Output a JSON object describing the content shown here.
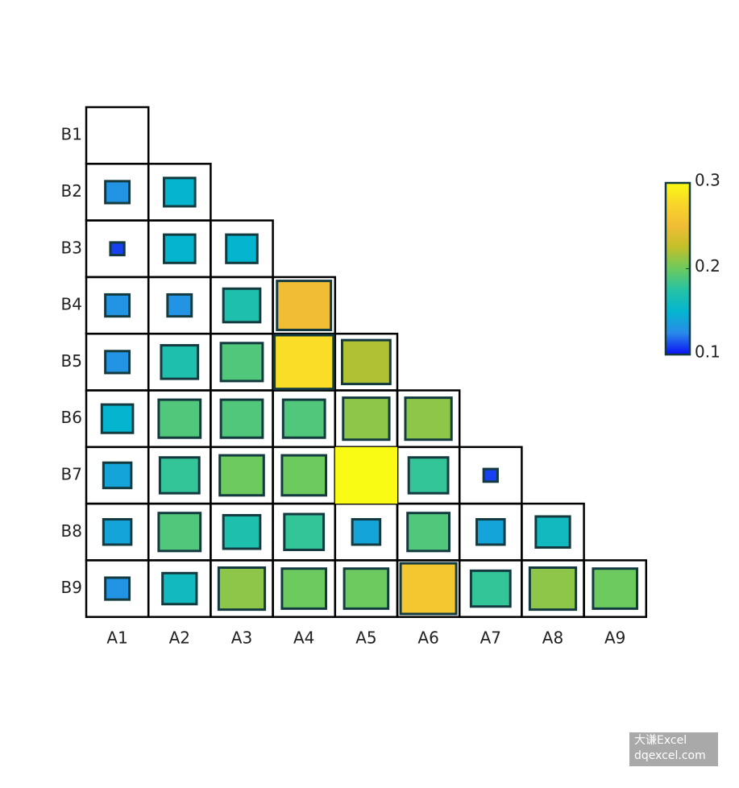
{
  "chart_data": {
    "type": "heatmap",
    "x": [
      "A1",
      "A2",
      "A3",
      "A4",
      "A5",
      "A6",
      "A7",
      "A8",
      "A9"
    ],
    "y": [
      "B1",
      "B2",
      "B3",
      "B4",
      "B5",
      "B6",
      "B7",
      "B8",
      "B9"
    ],
    "values": [
      [
        null,
        null,
        null,
        null,
        null,
        null,
        null,
        null,
        null
      ],
      [
        0.13,
        0.15,
        null,
        null,
        null,
        null,
        null,
        null,
        null
      ],
      [
        0.11,
        0.15,
        0.15,
        null,
        null,
        null,
        null,
        null,
        null
      ],
      [
        0.13,
        0.13,
        0.17,
        0.25,
        null,
        null,
        null,
        null,
        null
      ],
      [
        0.13,
        0.17,
        0.19,
        0.28,
        0.22,
        null,
        null,
        null,
        null
      ],
      [
        0.15,
        0.19,
        0.19,
        0.19,
        0.21,
        0.21,
        null,
        null,
        null
      ],
      [
        0.14,
        0.18,
        0.2,
        0.2,
        0.3,
        0.18,
        0.11,
        null,
        null
      ],
      [
        0.14,
        0.19,
        0.17,
        0.18,
        0.14,
        0.19,
        0.14,
        0.16,
        null
      ],
      [
        0.13,
        0.16,
        0.21,
        0.2,
        0.2,
        0.26,
        0.18,
        0.21,
        0.2
      ]
    ],
    "clim": [
      0.1,
      0.3
    ],
    "cticks": [
      0.1,
      0.2,
      0.3
    ],
    "colormap": [
      "#0a10f5",
      "#2a8ae8",
      "#05b5d0",
      "#25c2a5",
      "#6cca5e",
      "#c2bf2a",
      "#f0bd35",
      "#f9d52a",
      "#f9fb14"
    ]
  },
  "watermark": {
    "line1": "大谦Excel",
    "line2": "dqexcel.com"
  }
}
